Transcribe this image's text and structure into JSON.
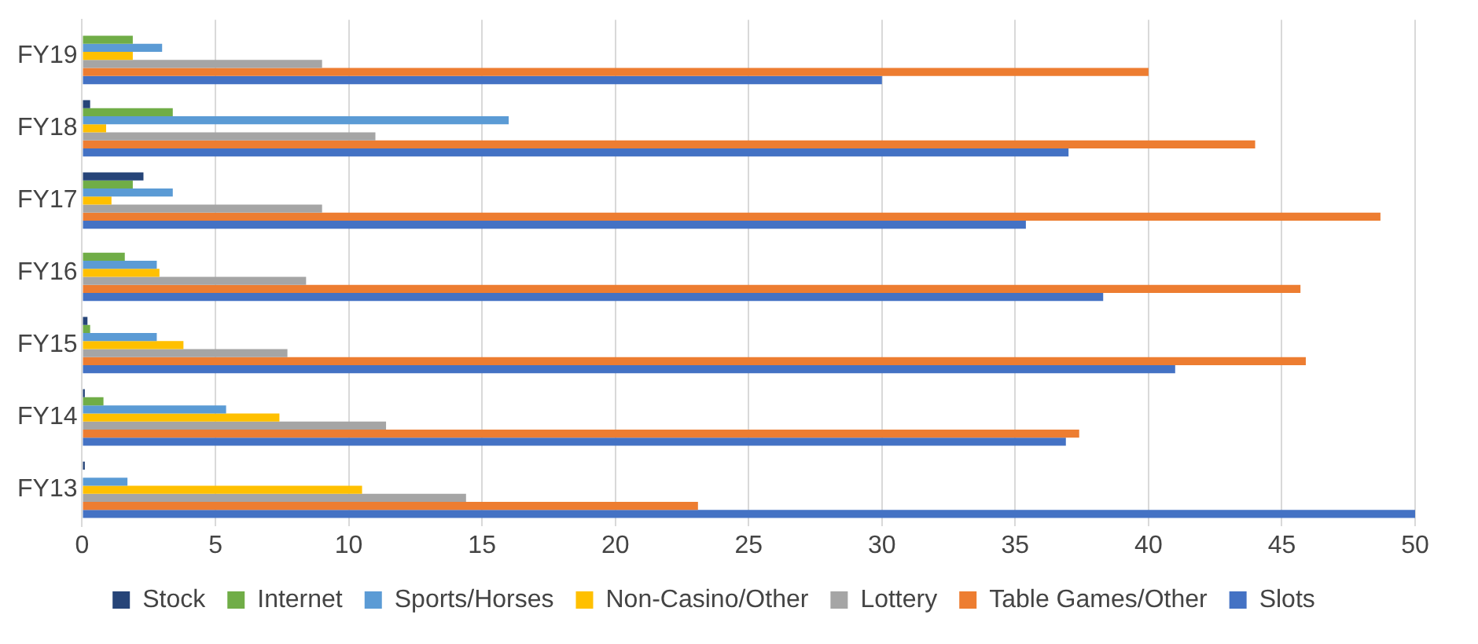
{
  "chart_data": {
    "type": "bar",
    "orientation": "horizontal",
    "categories": [
      "FY19",
      "FY18",
      "FY17",
      "FY16",
      "FY15",
      "FY14",
      "FY13"
    ],
    "series": [
      {
        "name": "Stock",
        "color": "#264478",
        "values": [
          0,
          0.3,
          2.3,
          0,
          0.2,
          0.1,
          0.1
        ]
      },
      {
        "name": "Internet",
        "color": "#70ad47",
        "values": [
          1.9,
          3.4,
          1.9,
          1.6,
          0.3,
          0.8,
          0
        ]
      },
      {
        "name": "Sports/Horses",
        "color": "#5b9bd5",
        "values": [
          3.0,
          16,
          3.4,
          2.8,
          2.8,
          5.4,
          1.7
        ]
      },
      {
        "name": "Non-Casino/Other",
        "color": "#ffc000",
        "values": [
          1.9,
          0.9,
          1.1,
          2.9,
          3.8,
          7.4,
          10.5
        ]
      },
      {
        "name": "Lottery",
        "color": "#a5a5a5",
        "values": [
          9.0,
          11,
          9.0,
          8.4,
          7.7,
          11.4,
          14.4
        ]
      },
      {
        "name": "Table Games/Other",
        "color": "#ed7d31",
        "values": [
          40,
          44,
          48.7,
          45.7,
          45.9,
          37.4,
          23.1
        ]
      },
      {
        "name": "Slots",
        "color": "#4472c4",
        "values": [
          30,
          37,
          35.4,
          38.3,
          41,
          36.9,
          50
        ]
      }
    ],
    "xlim": [
      0,
      50
    ],
    "xticks": [
      0,
      5,
      10,
      15,
      20,
      25,
      30,
      35,
      40,
      45,
      50
    ],
    "grid": "x",
    "legend": "bottom"
  }
}
